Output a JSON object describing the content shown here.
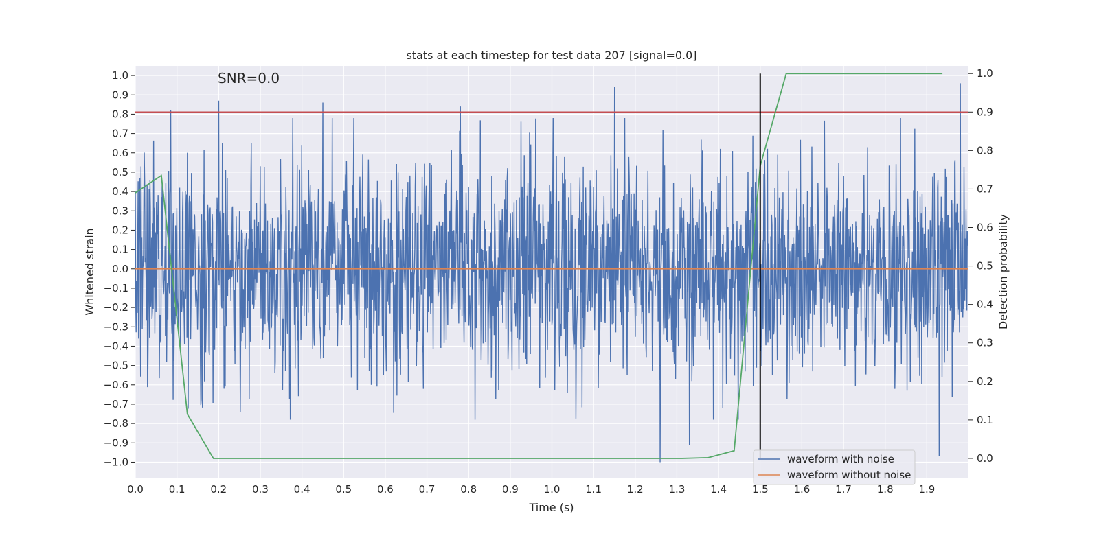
{
  "chart_data": {
    "type": "line",
    "title": "stats at each timestep for test data 207 [signal=0.0]",
    "xlabel": "Time (s)",
    "ylabel_left": "Whitened strain",
    "ylabel_right": "Detection probability",
    "annotation": "SNR=0.0",
    "xlim": [
      0.0,
      2.0
    ],
    "ylim_left": [
      -1.08,
      1.05
    ],
    "ylim_right": [
      -0.05,
      1.02
    ],
    "x_ticks": [
      "0.0",
      "0.1",
      "0.2",
      "0.3",
      "0.4",
      "0.5",
      "0.6",
      "0.7",
      "0.8",
      "0.9",
      "1.0",
      "1.1",
      "1.2",
      "1.3",
      "1.4",
      "1.5",
      "1.6",
      "1.7",
      "1.8",
      "1.9"
    ],
    "y_left_ticks": [
      "1.0",
      "0.9",
      "0.8",
      "0.7",
      "0.6",
      "0.5",
      "0.4",
      "0.3",
      "0.2",
      "0.1",
      "0.0",
      "−0.1",
      "−0.2",
      "−0.3",
      "−0.4",
      "−0.5",
      "−0.6",
      "−0.7",
      "−0.8",
      "−0.9",
      "−1.0"
    ],
    "y_right_ticks": [
      "1.0",
      "0.9",
      "0.8",
      "0.7",
      "0.6",
      "0.5",
      "0.4",
      "0.3",
      "0.2",
      "0.1",
      "0.0"
    ],
    "series": [
      {
        "name": "waveform with noise",
        "axis": "left",
        "color": "#4c72b0",
        "sample_count": 2048,
        "value_range": [
          -1.0,
          0.96
        ],
        "approx_std": 0.28,
        "spikes": [
          {
            "x": 0.085,
            "y": 0.82
          },
          {
            "x": 0.2,
            "y": 0.87
          },
          {
            "x": 0.45,
            "y": 0.86
          },
          {
            "x": 0.78,
            "y": 0.84
          },
          {
            "x": 1.15,
            "y": 0.94
          },
          {
            "x": 1.26,
            "y": -1.0
          },
          {
            "x": 1.33,
            "y": -0.91
          },
          {
            "x": 1.93,
            "y": -0.97
          },
          {
            "x": 1.98,
            "y": 0.96
          }
        ]
      },
      {
        "name": "waveform without noise",
        "axis": "left",
        "color": "#dd8452",
        "x": [
          0.0,
          2.0
        ],
        "y": [
          0.0,
          0.0
        ]
      },
      {
        "name": "detection probability",
        "axis": "right",
        "color": "#55a868",
        "x": [
          0.0,
          0.0625,
          0.125,
          0.1875,
          0.25,
          0.3125,
          0.375,
          0.4375,
          0.5,
          0.5625,
          0.625,
          0.6875,
          0.75,
          0.8125,
          0.875,
          0.9375,
          1.0,
          1.0625,
          1.125,
          1.1875,
          1.25,
          1.3125,
          1.375,
          1.4375,
          1.5,
          1.5625,
          1.625,
          1.6875,
          1.75,
          1.8125,
          1.875,
          1.9375
        ],
        "y": [
          0.69,
          0.735,
          0.115,
          0.0,
          0.0,
          0.0,
          0.0,
          0.0,
          0.0,
          0.0,
          0.0,
          0.0,
          0.0,
          0.0,
          0.0,
          0.0,
          0.0,
          0.0,
          0.0,
          0.0,
          0.0,
          0.0,
          0.002,
          0.02,
          0.76,
          1.0,
          1.0,
          1.0,
          1.0,
          1.0,
          1.0,
          1.0
        ]
      }
    ],
    "threshold": {
      "axis": "right",
      "value": 0.9,
      "color": "#c44e52"
    },
    "vertical_marker": {
      "x": 1.5,
      "y_range": [
        0.0,
        1.0
      ],
      "color": "#000000"
    },
    "legend": {
      "position": "bottom-right",
      "entries": [
        {
          "label": "waveform with noise",
          "color": "#4c72b0"
        },
        {
          "label": "waveform without noise",
          "color": "#dd8452"
        }
      ]
    },
    "grid": true,
    "background": "#eaeaf2"
  }
}
